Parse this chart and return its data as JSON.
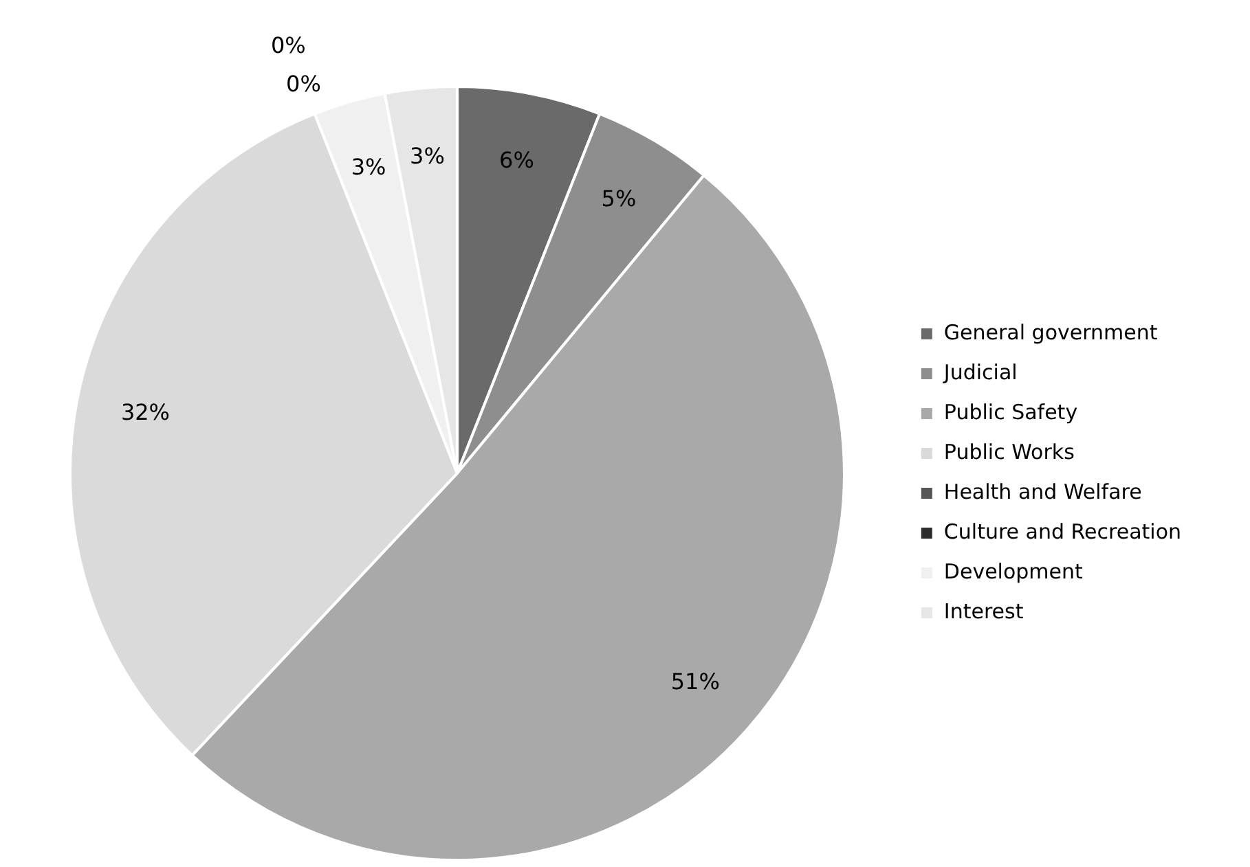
{
  "chart_data": {
    "type": "pie",
    "categories": [
      "General government",
      "Judicial",
      "Public Safety",
      "Public Works",
      "Health and Welfare",
      "Culture and Recreation",
      "Development",
      "Interest"
    ],
    "values": [
      6,
      5,
      51,
      32,
      0,
      0,
      3,
      3
    ],
    "value_labels": [
      "6%",
      "5%",
      "51%",
      "32%",
      "0%",
      "0%",
      "3%",
      "3%"
    ],
    "colors": [
      "#6a6a6a",
      "#8e8e8e",
      "#a9a9a9",
      "#dadada",
      "#555555",
      "#2e2e2e",
      "#f0f0f0",
      "#e6e6e6"
    ],
    "legend": "right"
  }
}
